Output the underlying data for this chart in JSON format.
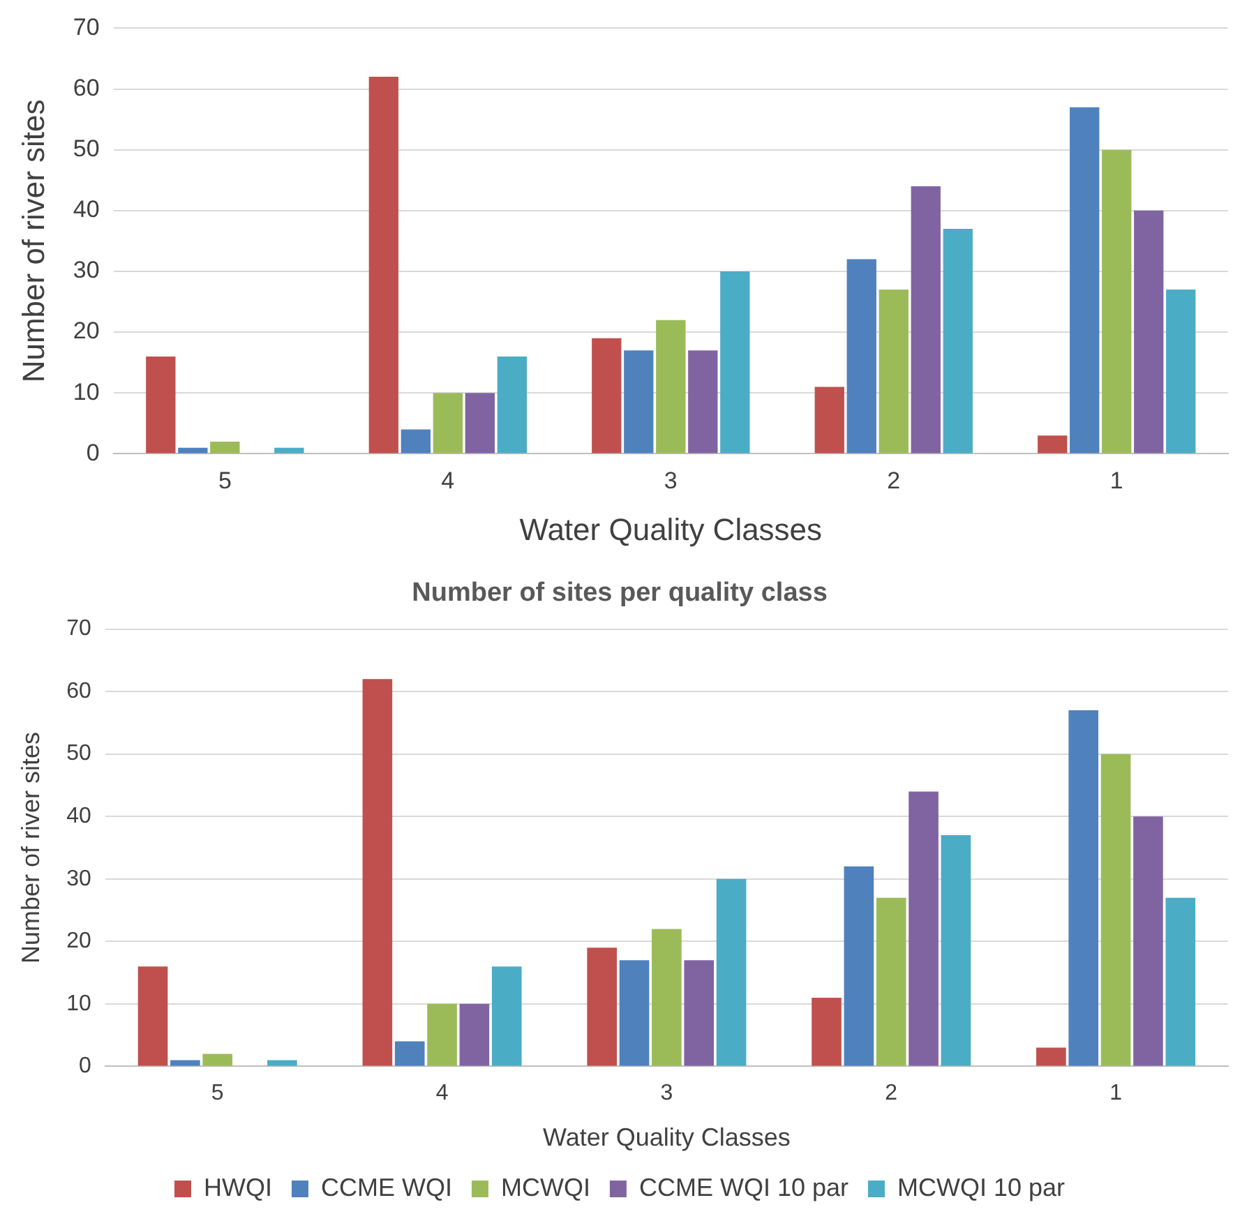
{
  "chart_data": [
    {
      "type": "bar",
      "xlabel": "Water Quality Classes",
      "ylabel": "Number of river sites",
      "categories": [
        "5",
        "4",
        "3",
        "2",
        "1"
      ],
      "series": [
        {
          "color": "#c0504d",
          "values": [
            16,
            62,
            19,
            11,
            3
          ]
        },
        {
          "color": "#4f81bd",
          "values": [
            1,
            4,
            17,
            32,
            57
          ]
        },
        {
          "color": "#9bbb59",
          "values": [
            2,
            10,
            22,
            27,
            50
          ]
        },
        {
          "color": "#8064a2",
          "values": [
            0,
            10,
            17,
            44,
            40
          ]
        },
        {
          "color": "#4bacc6",
          "values": [
            1,
            16,
            30,
            37,
            27
          ]
        }
      ],
      "ylim": [
        0,
        70
      ],
      "yticks": [
        0,
        10,
        20,
        30,
        40,
        50,
        60,
        70
      ],
      "grid": "y",
      "legend": false
    },
    {
      "type": "bar",
      "title": "Number of sites per quality class",
      "xlabel": "Water Quality Classes",
      "ylabel": "Number of river sites",
      "categories": [
        "5",
        "4",
        "3",
        "2",
        "1"
      ],
      "series": [
        {
          "name": "HWQI",
          "color": "#c0504d",
          "values": [
            16,
            62,
            19,
            11,
            3
          ]
        },
        {
          "name": "CCME WQI",
          "color": "#4f81bd",
          "values": [
            1,
            4,
            17,
            32,
            57
          ]
        },
        {
          "name": "MCWQI",
          "color": "#9bbb59",
          "values": [
            2,
            10,
            22,
            27,
            50
          ]
        },
        {
          "name": "CCME WQI 10 par",
          "color": "#8064a2",
          "values": [
            0,
            10,
            17,
            44,
            40
          ]
        },
        {
          "name": "MCWQI 10 par",
          "color": "#4bacc6",
          "values": [
            1,
            16,
            30,
            37,
            27
          ]
        }
      ],
      "ylim": [
        0,
        70
      ],
      "yticks": [
        0,
        10,
        20,
        30,
        40,
        50,
        60,
        70
      ],
      "grid": "y",
      "legend": "bottom"
    }
  ]
}
